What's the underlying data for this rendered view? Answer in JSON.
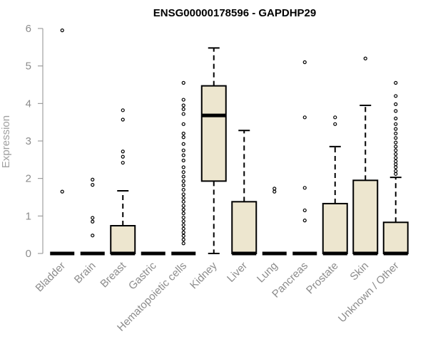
{
  "chart_data": {
    "type": "boxplot",
    "title": "ENSG00000178596 - GAPDHP29",
    "ylabel": "Expression",
    "xlabel": "",
    "ylim": [
      0,
      6
    ],
    "yticks": [
      0,
      1,
      2,
      3,
      4,
      5,
      6
    ],
    "box_fill": "#ede6cf",
    "categories": [
      "Bladder",
      "Brain",
      "Breast",
      "Gastric",
      "Hematopoietic cells",
      "Kidney",
      "Liver",
      "Lung",
      "Pancreas",
      "Prostate",
      "Skin",
      "Unknown / Other"
    ],
    "boxes": [
      {
        "q1": 0,
        "median": 0,
        "q3": 0,
        "whisker_low": 0,
        "whisker_high": 0,
        "outliers": [
          1.65,
          5.95
        ]
      },
      {
        "q1": 0,
        "median": 0,
        "q3": 0,
        "whisker_low": 0,
        "whisker_high": 0,
        "outliers": [
          0.48,
          0.85,
          0.95,
          1.83,
          1.97
        ]
      },
      {
        "q1": 0,
        "median": 0,
        "q3": 0.74,
        "whisker_low": 0,
        "whisker_high": 1.67,
        "outliers": [
          2.42,
          2.58,
          2.72,
          3.57,
          3.82
        ]
      },
      {
        "q1": 0,
        "median": 0,
        "q3": 0,
        "whisker_low": 0,
        "whisker_high": 0,
        "outliers": []
      },
      {
        "q1": 0,
        "median": 0,
        "q3": 0,
        "whisker_low": 0,
        "whisker_high": 0,
        "outliers": [
          0.27,
          0.37,
          0.47,
          0.56,
          0.66,
          0.76,
          0.86,
          0.96,
          1.07,
          1.17,
          1.27,
          1.38,
          1.48,
          1.58,
          1.7,
          1.82,
          1.93,
          2.05,
          2.17,
          2.3,
          2.48,
          2.62,
          2.75,
          2.92,
          3.1,
          3.2,
          3.45,
          3.72,
          3.85,
          3.95,
          4.1,
          4.55
        ]
      },
      {
        "q1": 1.93,
        "median": 3.68,
        "q3": 4.47,
        "whisker_low": 0,
        "whisker_high": 5.48,
        "outliers": []
      },
      {
        "q1": 0,
        "median": 0,
        "q3": 1.38,
        "whisker_low": 0,
        "whisker_high": 3.28,
        "outliers": []
      },
      {
        "q1": 0,
        "median": 0,
        "q3": 0,
        "whisker_low": 0,
        "whisker_high": 0,
        "outliers": [
          1.65,
          1.73
        ]
      },
      {
        "q1": 0,
        "median": 0,
        "q3": 0,
        "whisker_low": 0,
        "whisker_high": 0,
        "outliers": [
          0.88,
          1.15,
          1.75,
          3.63,
          5.1
        ]
      },
      {
        "q1": 0,
        "median": 0,
        "q3": 1.33,
        "whisker_low": 0,
        "whisker_high": 2.85,
        "outliers": [
          3.45,
          3.63
        ]
      },
      {
        "q1": 0,
        "median": 0,
        "q3": 1.95,
        "whisker_low": 0,
        "whisker_high": 3.95,
        "outliers": [
          5.2
        ]
      },
      {
        "q1": 0,
        "median": 0,
        "q3": 0.83,
        "whisker_low": 0,
        "whisker_high": 2.03,
        "outliers": [
          2.12,
          2.2,
          2.3,
          2.38,
          2.46,
          2.55,
          2.65,
          2.75,
          2.85,
          2.96,
          3.08,
          3.2,
          3.32,
          3.45,
          3.6,
          3.8,
          3.98,
          4.2,
          4.55
        ]
      }
    ]
  }
}
